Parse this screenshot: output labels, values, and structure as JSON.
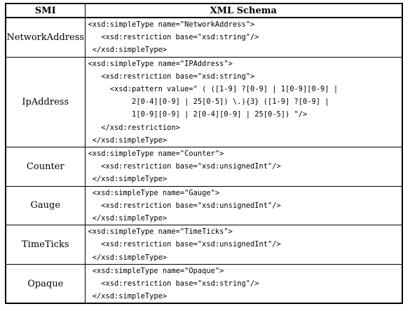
{
  "table": {
    "headers": {
      "smi": "SMI",
      "xml": "XML Schema"
    },
    "rows": [
      {
        "smi": "NetworkAddress",
        "lines": [
          "<xsd:simpleType name=\"NetworkAddress\">",
          "   <xsd:restriction base=\"xsd:string\"/>",
          " </xsd:simpleType>"
        ]
      },
      {
        "smi": "IpAddress",
        "lines": [
          "<xsd:simpleType name=\"IPAddress\">",
          "   <xsd:restriction base=\"xsd:string\">",
          "     <xsd:pattern value=\" ( ([1-9] ?[0-9] | 1[0-9][0-9] |",
          "          2[0-4][0-9] | 25[0-5]) \\.){3} ([1-9] ?[0-9] |",
          "          1[0-9][0-9] | 2[0-4][0-9] | 25[0-5]) \"/>",
          "   </xsd:restriction>",
          " </xsd:simpleType>"
        ]
      },
      {
        "smi": "Counter",
        "lines": [
          "<xsd:simpleType name=\"Counter\">",
          "   <xsd:restriction base=\"xsd:unsignedInt\"/>",
          " </xsd:simpleType>"
        ]
      },
      {
        "smi": "Gauge",
        "lines": [
          " <xsd:simpleType name=\"Gauge\">",
          "   <xsd:restriction base=\"xsd:unsignedInt\"/>",
          " </xsd:simpleType>"
        ]
      },
      {
        "smi": "TimeTicks",
        "lines": [
          "<xsd:simpleType name=\"TimeTicks\">",
          "   <xsd:restriction base=\"xsd:unsignedInt\"/>",
          " </xsd:simpleType>"
        ]
      },
      {
        "smi": "Opaque",
        "lines": [
          " <xsd:simpleType name=\"Opaque\">",
          "   <xsd:restriction base=\"xsd:string\"/>",
          " </xsd:simpleType>"
        ]
      }
    ]
  }
}
